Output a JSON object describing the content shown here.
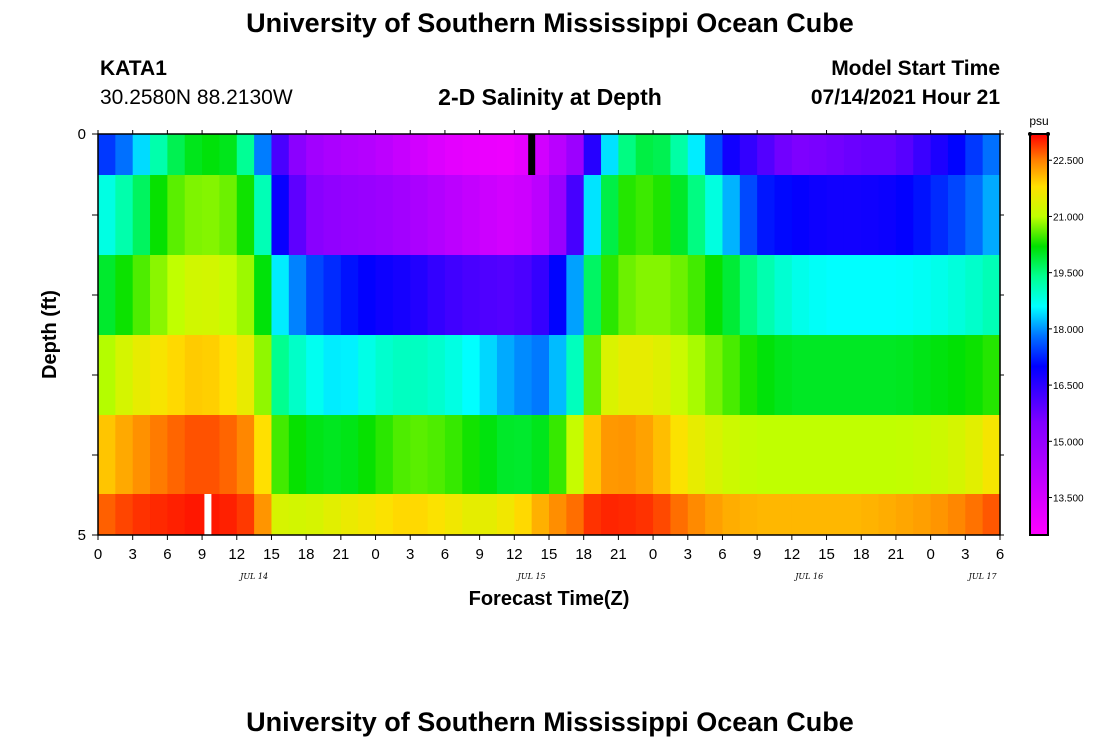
{
  "header": {
    "title": "University of Southern Mississippi Ocean Cube",
    "station": "KATA1",
    "coordinates": "30.2580N  88.2130W",
    "subtitle": "2-D Salinity at Depth",
    "model_start_label": "Model Start Time",
    "model_start_value": "07/14/2021 Hour 21"
  },
  "footer": {
    "title": "University of Southern Mississippi Ocean Cube"
  },
  "chart_data": {
    "type": "heatmap",
    "title": "2-D Salinity at Depth",
    "xlabel": "Forecast Time(Z)",
    "ylabel": "Depth (ft)",
    "x_tick_labels": [
      "0",
      "3",
      "6",
      "9",
      "12",
      "15",
      "18",
      "21",
      "0",
      "3",
      "6",
      "9",
      "12",
      "15",
      "18",
      "21",
      "0",
      "3",
      "6",
      "9",
      "12",
      "15",
      "18",
      "21",
      "0",
      "3",
      "6"
    ],
    "date_labels": [
      {
        "label": "JUL 14",
        "tick_index": 4.5
      },
      {
        "label": "JUL 15",
        "tick_index": 12.5
      },
      {
        "label": "JUL 16",
        "tick_index": 20.5
      },
      {
        "label": "JUL 17",
        "tick_index": 25.5
      }
    ],
    "x_hours_range": [
      0,
      78
    ],
    "y_tick_labels": [
      "0",
      "5"
    ],
    "ylim": [
      0,
      5
    ],
    "colorbar": {
      "unit": "psu",
      "min": 12.5,
      "max": 23.2,
      "tick_labels": [
        "13.500",
        "15.000",
        "16.500",
        "18.000",
        "19.500",
        "21.000",
        "22.500"
      ],
      "tick_values": [
        13.5,
        15.0,
        16.5,
        18.0,
        19.5,
        21.0,
        22.5
      ],
      "color_stops": [
        {
          "v": 12.5,
          "c": "#ff00ff"
        },
        {
          "v": 14.0,
          "c": "#c000ff"
        },
        {
          "v": 15.5,
          "c": "#8000ff"
        },
        {
          "v": 17.0,
          "c": "#0000ff"
        },
        {
          "v": 17.8,
          "c": "#0070ff"
        },
        {
          "v": 18.6,
          "c": "#00ffff"
        },
        {
          "v": 19.4,
          "c": "#00ff90"
        },
        {
          "v": 20.2,
          "c": "#00e000"
        },
        {
          "v": 21.0,
          "c": "#c0ff00"
        },
        {
          "v": 21.8,
          "c": "#ffe000"
        },
        {
          "v": 22.5,
          "c": "#ff8000"
        },
        {
          "v": 23.2,
          "c": "#ff0000"
        }
      ]
    },
    "series": [
      {
        "depth_ft": "0-1",
        "hours": [
          0,
          3,
          6,
          9,
          12,
          14,
          15,
          18,
          21,
          24,
          27,
          30,
          33,
          36,
          39,
          42,
          43,
          45,
          48,
          51,
          54,
          57,
          60,
          63,
          66,
          69,
          72,
          75,
          78
        ],
        "values": [
          17.2,
          18.0,
          19.6,
          20.2,
          20.0,
          18.3,
          16.6,
          14.8,
          14.4,
          14.2,
          13.7,
          13.2,
          13.0,
          12.9,
          13.8,
          15.2,
          17.0,
          19.3,
          20.0,
          19.0,
          17.0,
          16.2,
          15.5,
          15.6,
          15.8,
          15.8,
          16.5,
          17.2,
          18.0
        ]
      },
      {
        "depth_ft": "1-2",
        "hours": [
          0,
          3,
          6,
          9,
          12,
          14,
          15,
          18,
          21,
          24,
          27,
          30,
          33,
          36,
          39,
          42,
          43,
          45,
          48,
          51,
          54,
          57,
          60,
          63,
          66,
          69,
          72,
          75,
          78
        ],
        "values": [
          18.6,
          19.4,
          20.5,
          20.8,
          20.6,
          19.7,
          17.4,
          15.4,
          15.0,
          14.9,
          14.6,
          14.2,
          13.8,
          13.5,
          14.3,
          16.8,
          19.0,
          20.3,
          20.5,
          19.8,
          18.5,
          17.2,
          17.0,
          16.8,
          16.8,
          16.9,
          17.2,
          17.6,
          18.3
        ]
      },
      {
        "depth_ft": "2-3",
        "hours": [
          0,
          3,
          6,
          9,
          12,
          14,
          15,
          18,
          21,
          24,
          27,
          30,
          33,
          36,
          39,
          42,
          43,
          45,
          48,
          51,
          54,
          57,
          60,
          63,
          66,
          69,
          72,
          75,
          78
        ],
        "values": [
          19.8,
          20.4,
          20.9,
          21.3,
          21.0,
          20.6,
          18.8,
          17.6,
          17.2,
          16.9,
          16.7,
          16.3,
          16.1,
          16.0,
          16.5,
          18.6,
          20.0,
          20.6,
          20.8,
          20.6,
          20.1,
          19.3,
          18.8,
          18.6,
          18.6,
          18.6,
          18.7,
          18.9,
          19.2
        ]
      },
      {
        "depth_ft": "3-4",
        "hours": [
          0,
          3,
          6,
          9,
          12,
          14,
          15,
          18,
          21,
          24,
          27,
          30,
          33,
          36,
          39,
          42,
          43,
          45,
          48,
          51,
          54,
          57,
          60,
          63,
          66,
          69,
          72,
          75,
          78
        ],
        "values": [
          20.8,
          21.4,
          21.8,
          22.0,
          21.7,
          21.2,
          19.6,
          18.8,
          18.4,
          18.9,
          19.1,
          18.9,
          18.5,
          18.0,
          17.8,
          19.5,
          21.0,
          21.5,
          21.5,
          21.0,
          20.6,
          20.2,
          20.0,
          20.0,
          20.0,
          20.0,
          20.1,
          20.2,
          20.4
        ]
      },
      {
        "depth_ft": "4-5",
        "hours": [
          0,
          3,
          6,
          9,
          12,
          14,
          15,
          18,
          21,
          24,
          27,
          30,
          33,
          36,
          39,
          42,
          43,
          45,
          48,
          51,
          54,
          57,
          60,
          63,
          66,
          69,
          72,
          75,
          78
        ],
        "values": [
          21.9,
          22.3,
          22.6,
          22.8,
          22.6,
          22.2,
          20.6,
          20.1,
          20.0,
          20.3,
          20.6,
          20.5,
          20.2,
          19.9,
          20.1,
          21.4,
          22.2,
          22.4,
          22.2,
          21.6,
          21.2,
          21.0,
          21.0,
          21.0,
          21.0,
          21.0,
          21.1,
          21.3,
          21.8
        ]
      },
      {
        "depth_ft": "5",
        "hours": [
          0,
          3,
          6,
          9,
          12,
          14,
          15,
          18,
          21,
          24,
          27,
          30,
          33,
          36,
          39,
          42,
          43,
          45,
          48,
          51,
          54,
          57,
          60,
          63,
          66,
          69,
          72,
          75,
          78
        ],
        "values": [
          22.6,
          22.9,
          23.0,
          23.1,
          23.0,
          22.7,
          21.3,
          21.2,
          21.5,
          21.7,
          21.9,
          21.7,
          21.4,
          21.7,
          22.3,
          22.7,
          23.0,
          23.0,
          22.9,
          22.5,
          22.2,
          22.1,
          22.1,
          22.1,
          22.1,
          22.2,
          22.3,
          22.5,
          22.8
        ]
      }
    ],
    "markers": [
      {
        "hour": 37.5,
        "row": 0,
        "color": "#000000"
      },
      {
        "hour": 9.5,
        "row": 5,
        "color": "#ffffff"
      }
    ]
  }
}
